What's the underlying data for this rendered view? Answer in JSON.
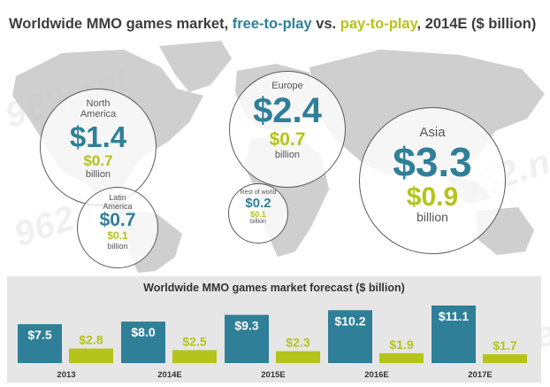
{
  "title": {
    "part1": "Worldwide MMO games market, ",
    "free": "free-to-play",
    "part2": " vs. ",
    "pay": "pay-to-play",
    "part3": ", 2014E ($ billion)"
  },
  "colors": {
    "free_to_play": "#2f7f99",
    "pay_to_play": "#b4c41a",
    "map": "#cfcfcf",
    "panel": "#e6e6e6"
  },
  "regions": {
    "north_america": {
      "name": "North America",
      "free": "$1.4",
      "pay": "$0.7",
      "unit": "billion"
    },
    "europe": {
      "name": "Europe",
      "free": "$2.4",
      "pay": "$0.7",
      "unit": "billion"
    },
    "asia": {
      "name": "Asia",
      "free": "$3.3",
      "pay": "$0.9",
      "unit": "billion"
    },
    "latin_america": {
      "name": "Latin America",
      "free": "$0.7",
      "pay": "$0.1",
      "unit": "billion"
    },
    "rest_of_world": {
      "name": "Rest of world",
      "free": "$0.2",
      "pay": "$0.1",
      "unit": "billion"
    }
  },
  "watermark": {
    "text": "962.net"
  },
  "chart_data": [
    {
      "type": "bubble-map",
      "title": "Worldwide MMO games market, free-to-play vs. pay-to-play, 2014E ($ billion)",
      "categories": [
        "North America",
        "Europe",
        "Asia",
        "Latin America",
        "Rest of world"
      ],
      "series": [
        {
          "name": "free-to-play",
          "values": [
            1.4,
            2.4,
            3.3,
            0.7,
            0.2
          ]
        },
        {
          "name": "pay-to-play",
          "values": [
            0.7,
            0.7,
            0.9,
            0.1,
            0.1
          ]
        }
      ]
    },
    {
      "type": "bar",
      "title": "Worldwide MMO games market forecast ($ billion)",
      "categories": [
        "2013",
        "2014E",
        "2015E",
        "2016E",
        "2017E"
      ],
      "series": [
        {
          "name": "free-to-play",
          "color": "#2f7f99",
          "values": [
            7.5,
            8.0,
            9.3,
            10.2,
            11.1
          ],
          "labels": [
            "$7.5",
            "$8.0",
            "$9.3",
            "$10.2",
            "$11.1"
          ]
        },
        {
          "name": "pay-to-play",
          "color": "#b4c41a",
          "values": [
            2.8,
            2.5,
            2.3,
            1.9,
            1.7
          ],
          "labels": [
            "$2.8",
            "$2.5",
            "$2.3",
            "$1.9",
            "$1.7"
          ]
        }
      ],
      "ylim": [
        0,
        11.1
      ],
      "grid": false,
      "legend": "none"
    }
  ]
}
